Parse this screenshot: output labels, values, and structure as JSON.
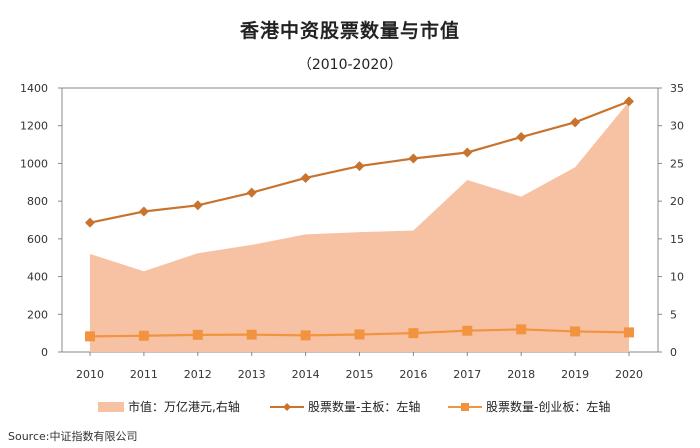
{
  "chart_data": {
    "type": "area+line",
    "title": "香港中资股票数量与市值",
    "subtitle": "（2010-2020）",
    "categories": [
      "2010",
      "2011",
      "2012",
      "2013",
      "2014",
      "2015",
      "2016",
      "2017",
      "2018",
      "2019",
      "2020"
    ],
    "left_axis": {
      "ylim": [
        0,
        1400
      ],
      "ticks": [
        "0",
        "200",
        "400",
        "600",
        "800",
        "1000",
        "1200",
        "1400"
      ]
    },
    "right_axis": {
      "ylim": [
        0,
        35
      ],
      "ticks": [
        "0",
        "5",
        "10",
        "15",
        "20",
        "25",
        "30",
        "35"
      ]
    },
    "series": [
      {
        "name": "市值：万亿港元,右轴",
        "type": "area",
        "axis": "right",
        "values": [
          13.0,
          10.7,
          13.1,
          14.2,
          15.6,
          15.9,
          16.1,
          22.8,
          20.6,
          24.5,
          33.2
        ],
        "color": "#f7c2a4"
      },
      {
        "name": "股票数量-主板：左轴",
        "type": "line",
        "axis": "left",
        "marker": "diamond",
        "values": [
          686,
          745,
          778,
          845,
          923,
          986,
          1026,
          1058,
          1140,
          1218,
          1329
        ],
        "color": "#c8742f"
      },
      {
        "name": "股票数量-创业板：左轴",
        "type": "line",
        "axis": "left",
        "marker": "square",
        "values": [
          83,
          86,
          91,
          92,
          88,
          93,
          100,
          113,
          120,
          109,
          104
        ],
        "color": "#f2943f"
      }
    ]
  },
  "legend": {
    "area": "市值：万亿港元,右轴",
    "main": "股票数量-主板：左轴",
    "gem": "股票数量-创业板：左轴"
  },
  "source": "Source:中证指数有限公司"
}
